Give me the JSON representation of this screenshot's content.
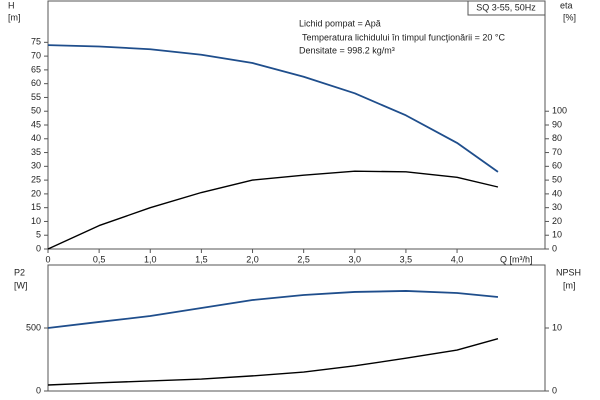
{
  "chart_data": [
    {
      "type": "line",
      "title": "SQ 3-55, 50Hz",
      "annotations": [
        "Lichid pompat = Apă",
        "Temperatura lichidului în timpul funcţionării = 20  °C",
        "Densitate = 998.2  kg/m³"
      ],
      "ylabel": "H",
      "yunit": "[m]",
      "y2label": "eta",
      "y2unit": "[%]",
      "xlabel": "Q [m³/h]",
      "x": [
        0,
        0.5,
        1.0,
        1.5,
        2.0,
        2.5,
        3.0,
        3.5,
        4.0,
        4.4
      ],
      "series": [
        {
          "color": "#1f4e8c",
          "axis": "y",
          "values": [
            74,
            73.5,
            72.5,
            70.5,
            67.5,
            62.5,
            56.5,
            48.5,
            38.5,
            28
          ]
        },
        {
          "color": "#000000",
          "axis": "y2",
          "values": [
            0,
            17,
            30,
            41,
            50,
            53.6,
            56.5,
            56,
            52,
            45
          ]
        }
      ],
      "xlim": [
        0,
        4.86
      ],
      "xticks": [
        0,
        {
          "value": 0.5,
          "label": "0,5"
        },
        {
          "value": 1.0,
          "label": "1,0"
        },
        {
          "value": 1.5,
          "label": "1,5"
        },
        {
          "value": 2.0,
          "label": "2,0"
        },
        {
          "value": 2.5,
          "label": "2,5"
        },
        {
          "value": 3.0,
          "label": "3,0"
        },
        {
          "value": 3.5,
          "label": "3,5"
        },
        {
          "value": 4.0,
          "label": "4,0"
        }
      ],
      "ylim": [
        0,
        90
      ],
      "yticks": [
        0,
        5,
        10,
        15,
        20,
        25,
        30,
        35,
        40,
        45,
        50,
        55,
        60,
        65,
        70,
        75
      ],
      "y2lim": [
        0,
        180
      ],
      "y2ticks": [
        0,
        10,
        20,
        30,
        40,
        50,
        60,
        70,
        80,
        90,
        100
      ],
      "grid": false
    },
    {
      "type": "line",
      "ylabel": "P2",
      "yunit": "[W]",
      "y2label": "NPSH",
      "y2unit": "[m]",
      "x": [
        0,
        0.5,
        1.0,
        1.5,
        2.0,
        2.5,
        3.0,
        3.5,
        4.0,
        4.4
      ],
      "series": [
        {
          "color": "#1f4e8c",
          "axis": "y",
          "values": [
            500,
            548,
            595,
            659,
            722,
            762,
            786,
            794,
            778,
            746
          ]
        },
        {
          "color": "#000000",
          "axis": "y2",
          "values": [
            0.95,
            1.3,
            1.6,
            1.9,
            2.4,
            3.0,
            4.0,
            5.2,
            6.5,
            8.3
          ]
        }
      ],
      "xlim": [
        0,
        4.86
      ],
      "ylim": [
        0,
        1000
      ],
      "yticks": [
        0,
        500
      ],
      "y2lim": [
        0,
        20
      ],
      "y2ticks": [
        0,
        10
      ],
      "grid": false
    }
  ]
}
